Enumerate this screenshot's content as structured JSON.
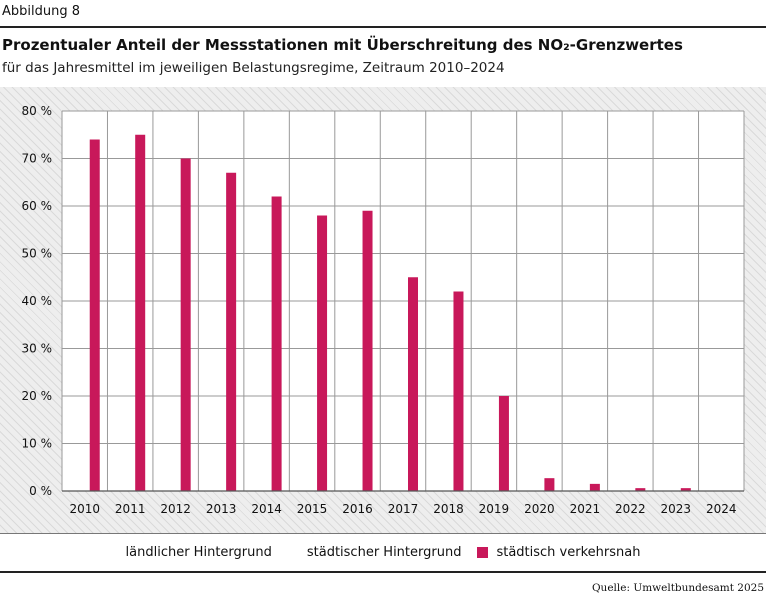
{
  "figure_label": "Abbildung 8",
  "title": "Prozentualer Anteil der Messstationen mit Überschreitung des NO₂-Grenzwertes",
  "subtitle": "für das Jahresmittel im jeweiligen Belastungsregime, Zeitraum 2010–2024",
  "source": "Quelle: Umweltbundesamt 2025",
  "colors": {
    "laendlich": "#1f7fb5",
    "staedtisch_hintergrund": "#f5b800",
    "verkehrsnah": "#c8185a",
    "grid": "#999999"
  },
  "chart_data": {
    "type": "bar",
    "categories": [
      "2010",
      "2011",
      "2012",
      "2013",
      "2014",
      "2015",
      "2016",
      "2017",
      "2018",
      "2019",
      "2020",
      "2021",
      "2022",
      "2023",
      "2024"
    ],
    "series": [
      {
        "name": "ländlicher Hintergrund",
        "values": [
          0,
          0,
          0,
          0,
          0,
          0,
          0,
          0,
          0,
          0,
          0,
          0,
          0,
          0,
          0
        ]
      },
      {
        "name": "städtischer Hintergrund",
        "values": [
          0,
          0,
          0,
          0,
          0,
          0,
          0,
          0,
          0,
          0,
          0,
          0,
          0,
          0,
          0
        ]
      },
      {
        "name": "städtisch verkehrsnah",
        "values": [
          74,
          75,
          70,
          67,
          62,
          58,
          59,
          45,
          42,
          20,
          2.7,
          1.5,
          0.6,
          0.6,
          0
        ]
      }
    ],
    "ylim": [
      0,
      80
    ],
    "yticks": [
      0,
      10,
      20,
      30,
      40,
      50,
      60,
      70,
      80
    ],
    "ytick_labels": [
      "0 %",
      "10 %",
      "20 %",
      "30 %",
      "40 %",
      "50 %",
      "60 %",
      "70 %",
      "80 %"
    ],
    "grid": true,
    "legend_position": "bottom"
  }
}
